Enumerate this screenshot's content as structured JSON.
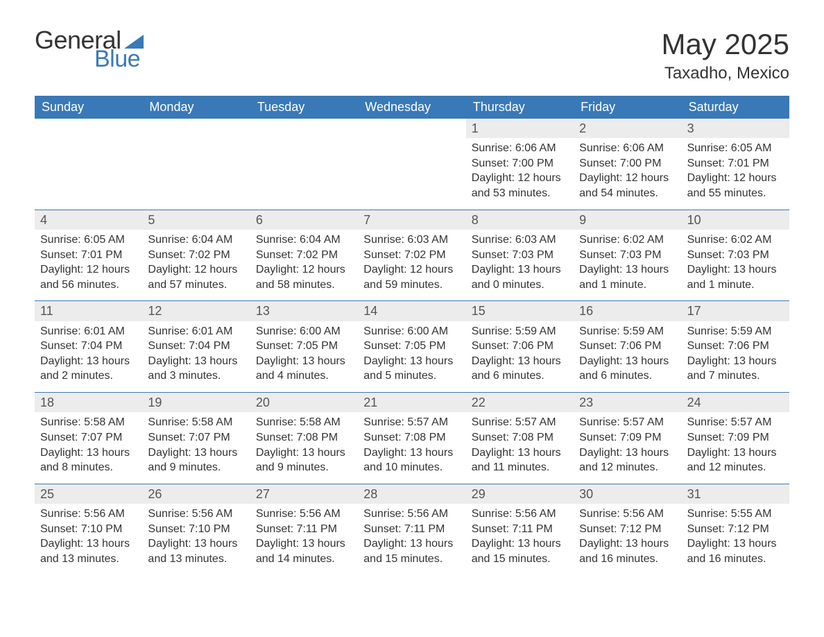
{
  "brand": {
    "word1": "General",
    "word2": "Blue",
    "text_color": "#333333",
    "accent_color": "#3a79b7",
    "triangle_color": "#3a79b7"
  },
  "title": "May 2025",
  "location": "Taxadho, Mexico",
  "colors": {
    "header_bg": "#3a79b7",
    "header_text": "#ffffff",
    "daynum_bg": "#ececec",
    "border": "#3a79b7",
    "body_text": "#333333",
    "background": "#ffffff"
  },
  "typography": {
    "title_fontsize": 42,
    "location_fontsize": 24,
    "dow_fontsize": 18,
    "daynum_fontsize": 18,
    "body_fontsize": 16
  },
  "layout": {
    "columns": 7,
    "rows": 5,
    "leading_blanks": 4
  },
  "days_of_week": [
    "Sunday",
    "Monday",
    "Tuesday",
    "Wednesday",
    "Thursday",
    "Friday",
    "Saturday"
  ],
  "days": [
    {
      "n": "1",
      "sunrise": "6:06 AM",
      "sunset": "7:00 PM",
      "daylight": "12 hours and 53 minutes."
    },
    {
      "n": "2",
      "sunrise": "6:06 AM",
      "sunset": "7:00 PM",
      "daylight": "12 hours and 54 minutes."
    },
    {
      "n": "3",
      "sunrise": "6:05 AM",
      "sunset": "7:01 PM",
      "daylight": "12 hours and 55 minutes."
    },
    {
      "n": "4",
      "sunrise": "6:05 AM",
      "sunset": "7:01 PM",
      "daylight": "12 hours and 56 minutes."
    },
    {
      "n": "5",
      "sunrise": "6:04 AM",
      "sunset": "7:02 PM",
      "daylight": "12 hours and 57 minutes."
    },
    {
      "n": "6",
      "sunrise": "6:04 AM",
      "sunset": "7:02 PM",
      "daylight": "12 hours and 58 minutes."
    },
    {
      "n": "7",
      "sunrise": "6:03 AM",
      "sunset": "7:02 PM",
      "daylight": "12 hours and 59 minutes."
    },
    {
      "n": "8",
      "sunrise": "6:03 AM",
      "sunset": "7:03 PM",
      "daylight": "13 hours and 0 minutes."
    },
    {
      "n": "9",
      "sunrise": "6:02 AM",
      "sunset": "7:03 PM",
      "daylight": "13 hours and 1 minute."
    },
    {
      "n": "10",
      "sunrise": "6:02 AM",
      "sunset": "7:03 PM",
      "daylight": "13 hours and 1 minute."
    },
    {
      "n": "11",
      "sunrise": "6:01 AM",
      "sunset": "7:04 PM",
      "daylight": "13 hours and 2 minutes."
    },
    {
      "n": "12",
      "sunrise": "6:01 AM",
      "sunset": "7:04 PM",
      "daylight": "13 hours and 3 minutes."
    },
    {
      "n": "13",
      "sunrise": "6:00 AM",
      "sunset": "7:05 PM",
      "daylight": "13 hours and 4 minutes."
    },
    {
      "n": "14",
      "sunrise": "6:00 AM",
      "sunset": "7:05 PM",
      "daylight": "13 hours and 5 minutes."
    },
    {
      "n": "15",
      "sunrise": "5:59 AM",
      "sunset": "7:06 PM",
      "daylight": "13 hours and 6 minutes."
    },
    {
      "n": "16",
      "sunrise": "5:59 AM",
      "sunset": "7:06 PM",
      "daylight": "13 hours and 6 minutes."
    },
    {
      "n": "17",
      "sunrise": "5:59 AM",
      "sunset": "7:06 PM",
      "daylight": "13 hours and 7 minutes."
    },
    {
      "n": "18",
      "sunrise": "5:58 AM",
      "sunset": "7:07 PM",
      "daylight": "13 hours and 8 minutes."
    },
    {
      "n": "19",
      "sunrise": "5:58 AM",
      "sunset": "7:07 PM",
      "daylight": "13 hours and 9 minutes."
    },
    {
      "n": "20",
      "sunrise": "5:58 AM",
      "sunset": "7:08 PM",
      "daylight": "13 hours and 9 minutes."
    },
    {
      "n": "21",
      "sunrise": "5:57 AM",
      "sunset": "7:08 PM",
      "daylight": "13 hours and 10 minutes."
    },
    {
      "n": "22",
      "sunrise": "5:57 AM",
      "sunset": "7:08 PM",
      "daylight": "13 hours and 11 minutes."
    },
    {
      "n": "23",
      "sunrise": "5:57 AM",
      "sunset": "7:09 PM",
      "daylight": "13 hours and 12 minutes."
    },
    {
      "n": "24",
      "sunrise": "5:57 AM",
      "sunset": "7:09 PM",
      "daylight": "13 hours and 12 minutes."
    },
    {
      "n": "25",
      "sunrise": "5:56 AM",
      "sunset": "7:10 PM",
      "daylight": "13 hours and 13 minutes."
    },
    {
      "n": "26",
      "sunrise": "5:56 AM",
      "sunset": "7:10 PM",
      "daylight": "13 hours and 13 minutes."
    },
    {
      "n": "27",
      "sunrise": "5:56 AM",
      "sunset": "7:11 PM",
      "daylight": "13 hours and 14 minutes."
    },
    {
      "n": "28",
      "sunrise": "5:56 AM",
      "sunset": "7:11 PM",
      "daylight": "13 hours and 15 minutes."
    },
    {
      "n": "29",
      "sunrise": "5:56 AM",
      "sunset": "7:11 PM",
      "daylight": "13 hours and 15 minutes."
    },
    {
      "n": "30",
      "sunrise": "5:56 AM",
      "sunset": "7:12 PM",
      "daylight": "13 hours and 16 minutes."
    },
    {
      "n": "31",
      "sunrise": "5:55 AM",
      "sunset": "7:12 PM",
      "daylight": "13 hours and 16 minutes."
    }
  ],
  "labels": {
    "sunrise": "Sunrise: ",
    "sunset": "Sunset: ",
    "daylight": "Daylight: "
  }
}
